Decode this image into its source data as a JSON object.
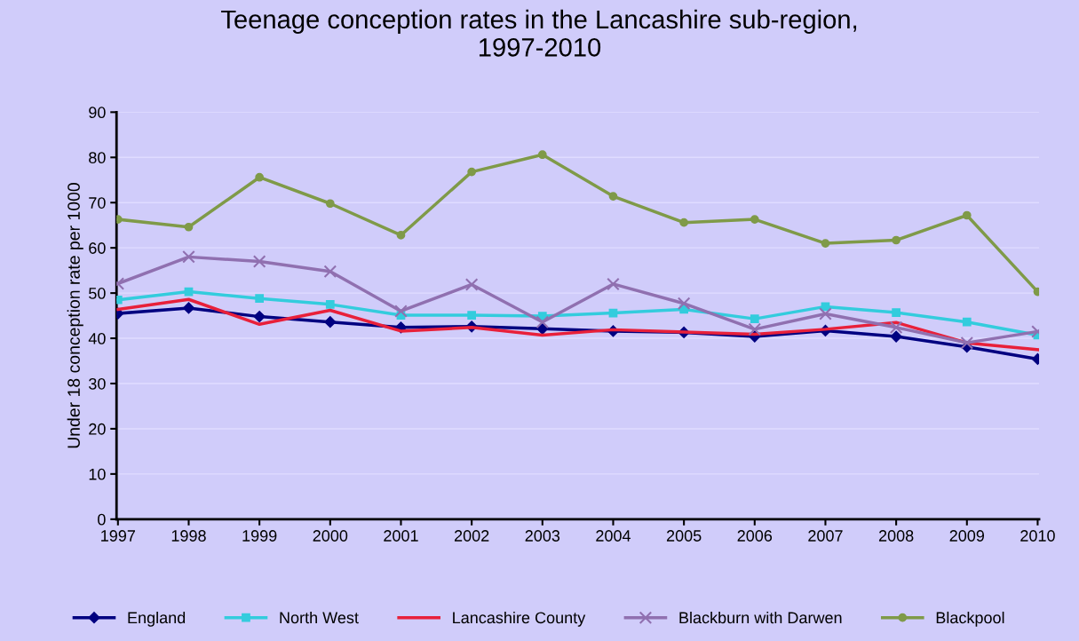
{
  "chart_data": {
    "type": "line",
    "title": "Teenage conception rates in the Lancashire sub-region,\n1997-2010",
    "ylabel": "Under 18 conception rate per 1000",
    "categories": [
      "1997",
      "1998",
      "1999",
      "2000",
      "2001",
      "2002",
      "2003",
      "2004",
      "2005",
      "2006",
      "2007",
      "2008",
      "2009",
      "2010"
    ],
    "series": [
      {
        "name": "England",
        "color": "#000080",
        "marker": "diamond",
        "values": [
          45.5,
          46.7,
          44.8,
          43.6,
          42.4,
          42.6,
          42.1,
          41.6,
          41.3,
          40.4,
          41.7,
          40.4,
          38.1,
          35.4
        ]
      },
      {
        "name": "North West",
        "color": "#33ccdd",
        "marker": "square",
        "values": [
          48.5,
          50.3,
          48.8,
          47.5,
          45.1,
          45.1,
          44.9,
          45.6,
          46.4,
          44.3,
          47.0,
          45.7,
          43.6,
          40.7
        ]
      },
      {
        "name": "Lancashire County",
        "color": "#e8203a",
        "marker": "none",
        "values": [
          46.4,
          48.6,
          43.1,
          46.2,
          41.6,
          42.4,
          40.7,
          41.9,
          41.4,
          40.9,
          42.0,
          43.5,
          39.0,
          37.5
        ]
      },
      {
        "name": "Blackburn with Darwen",
        "color": "#9070b0",
        "marker": "cross",
        "values": [
          52.1,
          58.0,
          57.0,
          54.8,
          46.0,
          51.9,
          43.6,
          52.0,
          47.7,
          42.0,
          45.4,
          42.4,
          39.0,
          41.5
        ]
      },
      {
        "name": "Blackpool",
        "color": "#7f9a48",
        "marker": "circle",
        "values": [
          66.3,
          64.6,
          75.6,
          69.8,
          62.8,
          76.8,
          80.6,
          71.4,
          65.6,
          66.3,
          61.0,
          61.7,
          67.2,
          50.3
        ]
      }
    ],
    "ylim": [
      0,
      90
    ],
    "yticks": [
      0,
      10,
      20,
      30,
      40,
      50,
      60,
      70,
      80,
      90
    ],
    "grid": "y",
    "legend": "bottom",
    "line_style": "solid"
  }
}
